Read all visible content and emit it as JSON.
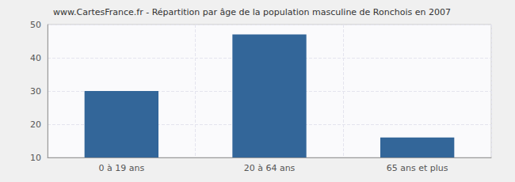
{
  "chart_data": {
    "type": "bar",
    "title": "www.CartesFrance.fr - Répartition par âge de la population masculine de Ronchois en 2007",
    "categories": [
      "0 à 19 ans",
      "20 à 64 ans",
      "65 ans et plus"
    ],
    "values": [
      30,
      47,
      16
    ],
    "color": "#336699",
    "ylim": [
      10,
      50
    ],
    "yticks": [
      10,
      20,
      30,
      40,
      50
    ],
    "grid": true
  }
}
